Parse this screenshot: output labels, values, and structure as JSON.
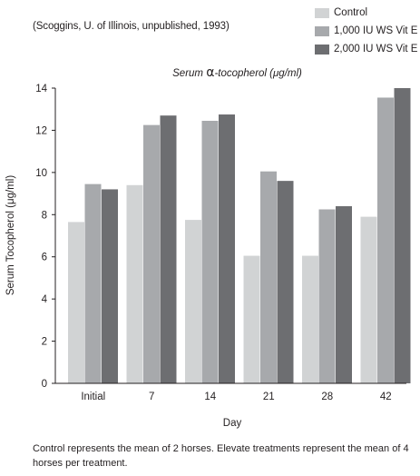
{
  "source": "(Scoggins, U. of Illinois, unpublished, 1993)",
  "subtitle_prefix": "Serum ",
  "subtitle_alpha": "α",
  "subtitle_rest": "-tocopherol (μg/ml)",
  "footnote": "Control represents the mean of 2 horses. Elevate treatments represent the mean of 4 horses per treatment.",
  "chart_data": {
    "type": "bar",
    "xlabel": "Day",
    "ylabel": "Serum Tocopherol (μg/ml)",
    "ylim": [
      0,
      14
    ],
    "yticks": [
      0,
      2,
      4,
      6,
      8,
      10,
      12,
      14
    ],
    "ytick_labels": [
      "0",
      "2",
      "4",
      "6",
      "8",
      "10",
      "12",
      "14"
    ],
    "grid": false,
    "legend_position": "top-right",
    "categories": [
      "Initial",
      "7",
      "14",
      "21",
      "28",
      "42"
    ],
    "series": [
      {
        "name": "Control",
        "color": "#d1d3d4",
        "values": [
          7.65,
          9.4,
          7.75,
          6.05,
          6.05,
          7.9
        ]
      },
      {
        "name": "1,000 IU WS Vit E",
        "color": "#a7a9ac",
        "values": [
          9.45,
          12.25,
          12.45,
          10.05,
          8.25,
          13.55
        ]
      },
      {
        "name": "2,000 IU WS Vit E",
        "color": "#6d6e71",
        "values": [
          9.2,
          12.7,
          12.75,
          9.6,
          8.4,
          14.0
        ]
      }
    ]
  }
}
